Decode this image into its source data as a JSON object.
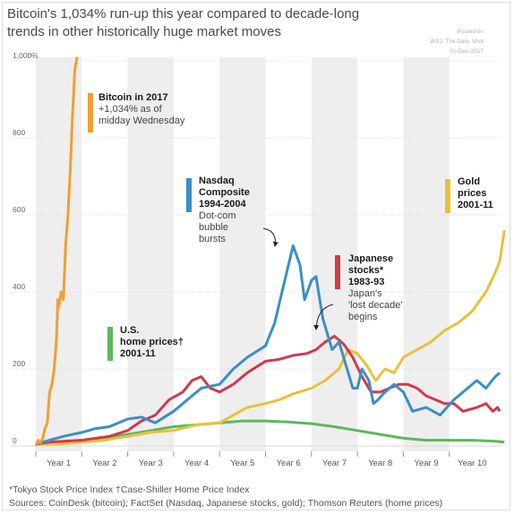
{
  "header": {
    "title": "Bitcoin's 1,034% run-up this year compared to decade-long trends in other historically huge market moves",
    "posted": [
      "Posted on",
      "WSJ: The Daily Shot",
      "01-Dec-2017"
    ]
  },
  "footer": {
    "note": "*Tokyo Stock Price Index    †Case-Shiller Home Price Index",
    "sources": "Sources: CoinDesk (bitcoin); FactSet (Nasdaq, Japanese stocks, gold); Thomson Reuters (home prices)"
  },
  "chart_data": {
    "type": "line",
    "title": "Bitcoin's 1,034% run-up this year compared to decade-long trends in other historically huge market moves",
    "xlabel": "",
    "ylabel": "",
    "ylim": [
      0,
      1000
    ],
    "xlim": [
      0,
      10
    ],
    "x_ticks": [
      "Year 1",
      "Year 2",
      "Year 3",
      "Year 4",
      "Year 5",
      "Year 6",
      "Year 7",
      "Year 8",
      "Year 9",
      "Year 10"
    ],
    "y_ticks": [
      {
        "value": 0,
        "label": "0"
      },
      {
        "value": 200,
        "label": "200"
      },
      {
        "value": 400,
        "label": "400"
      },
      {
        "value": 600,
        "label": "600"
      },
      {
        "value": 800,
        "label": "800"
      },
      {
        "value": 1000,
        "label": "1,000%"
      }
    ],
    "grid": "horizontal",
    "shaded_alternate_years": true,
    "series": [
      {
        "name": "Bitcoin in 2017",
        "color": "#f0a030",
        "points": [
          [
            0,
            0
          ],
          [
            0.05,
            15
          ],
          [
            0.1,
            8
          ],
          [
            0.15,
            20
          ],
          [
            0.2,
            45
          ],
          [
            0.25,
            60
          ],
          [
            0.3,
            140
          ],
          [
            0.35,
            160
          ],
          [
            0.4,
            200
          ],
          [
            0.45,
            280
          ],
          [
            0.48,
            380
          ],
          [
            0.5,
            360
          ],
          [
            0.55,
            400
          ],
          [
            0.6,
            380
          ],
          [
            0.65,
            520
          ],
          [
            0.7,
            600
          ],
          [
            0.75,
            720
          ],
          [
            0.8,
            860
          ],
          [
            0.85,
            980
          ],
          [
            0.9,
            1010
          ]
        ]
      },
      {
        "name": "Nasdaq Composite 1994-2004",
        "color": "#3b8fc4",
        "points": [
          [
            0,
            5
          ],
          [
            0.3,
            15
          ],
          [
            0.6,
            25
          ],
          [
            1,
            35
          ],
          [
            1.3,
            45
          ],
          [
            1.6,
            50
          ],
          [
            2,
            70
          ],
          [
            2.3,
            75
          ],
          [
            2.6,
            60
          ],
          [
            3,
            90
          ],
          [
            3.3,
            120
          ],
          [
            3.6,
            150
          ],
          [
            4,
            160
          ],
          [
            4.3,
            200
          ],
          [
            4.6,
            230
          ],
          [
            5,
            260
          ],
          [
            5.2,
            320
          ],
          [
            5.4,
            420
          ],
          [
            5.6,
            520
          ],
          [
            5.75,
            470
          ],
          [
            5.85,
            380
          ],
          [
            6,
            430
          ],
          [
            6.1,
            440
          ],
          [
            6.25,
            330
          ],
          [
            6.45,
            250
          ],
          [
            6.6,
            270
          ],
          [
            6.75,
            210
          ],
          [
            6.9,
            150
          ],
          [
            7,
            150
          ],
          [
            7.1,
            200
          ],
          [
            7.25,
            170
          ],
          [
            7.35,
            110
          ],
          [
            7.45,
            120
          ],
          [
            7.6,
            140
          ],
          [
            7.8,
            160
          ],
          [
            8,
            140
          ],
          [
            8.2,
            90
          ],
          [
            8.5,
            100
          ],
          [
            8.8,
            80
          ],
          [
            9.1,
            120
          ],
          [
            9.4,
            150
          ],
          [
            9.6,
            170
          ],
          [
            9.8,
            150
          ],
          [
            10,
            180
          ],
          [
            10.1,
            190
          ]
        ]
      },
      {
        "name": "Japanese stocks* 1983-93",
        "color": "#d03a4e",
        "points": [
          [
            0,
            5
          ],
          [
            0.3,
            10
          ],
          [
            0.6,
            12
          ],
          [
            1,
            15
          ],
          [
            1.3,
            20
          ],
          [
            1.6,
            25
          ],
          [
            2,
            40
          ],
          [
            2.3,
            65
          ],
          [
            2.6,
            80
          ],
          [
            2.9,
            120
          ],
          [
            3.2,
            140
          ],
          [
            3.4,
            170
          ],
          [
            3.6,
            180
          ],
          [
            3.8,
            150
          ],
          [
            4,
            140
          ],
          [
            4.3,
            160
          ],
          [
            4.6,
            190
          ],
          [
            5,
            220
          ],
          [
            5.3,
            225
          ],
          [
            5.6,
            235
          ],
          [
            5.9,
            240
          ],
          [
            6.1,
            250
          ],
          [
            6.3,
            270
          ],
          [
            6.5,
            285
          ],
          [
            6.7,
            265
          ],
          [
            6.9,
            230
          ],
          [
            7.1,
            180
          ],
          [
            7.3,
            140
          ],
          [
            7.5,
            140
          ],
          [
            7.7,
            150
          ],
          [
            7.9,
            160
          ],
          [
            8.1,
            160
          ],
          [
            8.3,
            150
          ],
          [
            8.5,
            130
          ],
          [
            8.7,
            120
          ],
          [
            8.9,
            110
          ],
          [
            9.1,
            110
          ],
          [
            9.3,
            90
          ],
          [
            9.6,
            100
          ],
          [
            9.8,
            110
          ],
          [
            9.95,
            90
          ],
          [
            10.05,
            100
          ],
          [
            10.1,
            90
          ]
        ]
      },
      {
        "name": "Gold prices 2001-11",
        "color": "#e8c13a",
        "points": [
          [
            0,
            5
          ],
          [
            0.5,
            5
          ],
          [
            1,
            10
          ],
          [
            1.5,
            15
          ],
          [
            2,
            25
          ],
          [
            2.5,
            35
          ],
          [
            3,
            40
          ],
          [
            3.5,
            55
          ],
          [
            4,
            60
          ],
          [
            4.3,
            80
          ],
          [
            4.6,
            100
          ],
          [
            5,
            110
          ],
          [
            5.3,
            120
          ],
          [
            5.6,
            135
          ],
          [
            6,
            150
          ],
          [
            6.3,
            170
          ],
          [
            6.6,
            200
          ],
          [
            6.8,
            250
          ],
          [
            7,
            240
          ],
          [
            7.2,
            210
          ],
          [
            7.4,
            170
          ],
          [
            7.6,
            200
          ],
          [
            7.8,
            190
          ],
          [
            8,
            230
          ],
          [
            8.3,
            250
          ],
          [
            8.6,
            270
          ],
          [
            8.9,
            300
          ],
          [
            9.2,
            320
          ],
          [
            9.5,
            350
          ],
          [
            9.8,
            400
          ],
          [
            10,
            450
          ],
          [
            10.1,
            480
          ],
          [
            10.2,
            560
          ]
        ]
      },
      {
        "name": "U.S. home prices† 2001-11",
        "color": "#5cb85c",
        "points": [
          [
            0,
            5
          ],
          [
            0.5,
            10
          ],
          [
            1,
            15
          ],
          [
            1.5,
            20
          ],
          [
            2,
            30
          ],
          [
            2.5,
            40
          ],
          [
            3,
            50
          ],
          [
            3.5,
            55
          ],
          [
            4,
            60
          ],
          [
            4.5,
            65
          ],
          [
            5,
            65
          ],
          [
            5.5,
            62
          ],
          [
            6,
            58
          ],
          [
            6.5,
            50
          ],
          [
            7,
            40
          ],
          [
            7.5,
            30
          ],
          [
            8,
            20
          ],
          [
            8.5,
            15
          ],
          [
            9,
            15
          ],
          [
            9.5,
            15
          ],
          [
            10,
            12
          ],
          [
            10.2,
            10
          ]
        ]
      }
    ],
    "annotations": [
      {
        "series": "Bitcoin in 2017",
        "head": [
          "Bitcoin in 2017"
        ],
        "sub": [
          "+1,034% as of",
          "midday Wednesday"
        ]
      },
      {
        "series": "Nasdaq Composite 1994-2004",
        "head": [
          "Nasdaq",
          "Composite",
          "1994-2004"
        ],
        "sub": [
          "Dot-com",
          "bubble",
          "bursts"
        ]
      },
      {
        "series": "Japanese stocks* 1983-93",
        "head": [
          "Japanese",
          "stocks*",
          "1983-93"
        ],
        "sub": [
          "Japan's",
          "'lost decade'",
          "begins"
        ]
      },
      {
        "series": "Gold prices 2001-11",
        "head": [
          "Gold",
          "prices",
          "2001-11"
        ],
        "sub": []
      },
      {
        "series": "U.S. home prices† 2001-11",
        "head": [
          "U.S.",
          "home prices†",
          "2001-11"
        ],
        "sub": []
      }
    ]
  }
}
